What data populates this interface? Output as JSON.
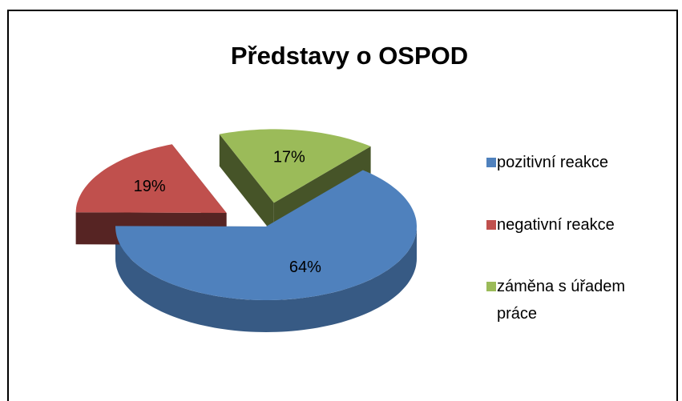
{
  "chart_data": {
    "type": "pie",
    "title": "Představy o OSPOD",
    "categories": [
      "pozitivní reakce",
      "negativní reakce",
      "záměna s úřadem práce"
    ],
    "values": [
      64,
      19,
      17
    ],
    "value_labels": [
      "64%",
      "19%",
      "17%"
    ],
    "colors": [
      "#4f81bd",
      "#c0504d",
      "#9bbb59"
    ],
    "legend": "right"
  }
}
